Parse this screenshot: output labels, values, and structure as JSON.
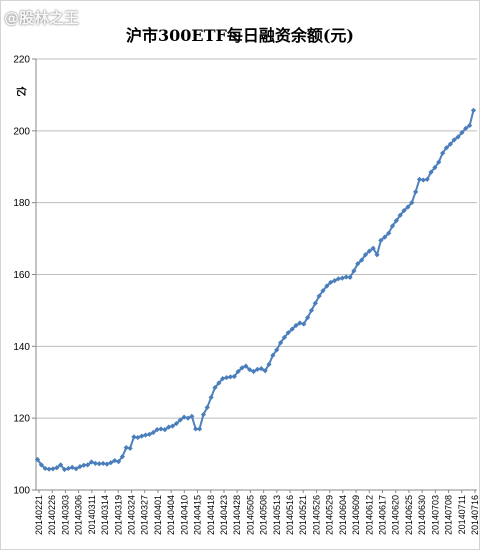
{
  "watermark": "@股林之王",
  "chart_data": {
    "type": "line",
    "title": "沪市300ETF每日融资余额(元)",
    "unit_label": "亿",
    "xlabel": "",
    "ylabel": "",
    "ylim": [
      100,
      220
    ],
    "yticks": [
      100,
      120,
      140,
      160,
      180,
      200,
      220
    ],
    "grid": "horizontal",
    "line_color": "#4f81bd",
    "marker_color": "#4a7ebb",
    "x_tick_labels": [
      "20140221",
      "20140226",
      "20140303",
      "20140306",
      "20140311",
      "20140314",
      "20140319",
      "20140324",
      "20140327",
      "20140401",
      "20140404",
      "20140410",
      "20140415",
      "20140418",
      "20140423",
      "20140428",
      "20140505",
      "20140508",
      "20140513",
      "20140516",
      "20140521",
      "20140526",
      "20140529",
      "20140604",
      "20140609",
      "20140612",
      "20140617",
      "20140620",
      "20140625",
      "20140630",
      "20140703",
      "20140708",
      "20140711",
      "20140716"
    ],
    "series": [
      {
        "values": [
          108.5,
          107,
          106,
          105.8,
          105.9,
          106.2,
          107,
          105.7,
          106,
          106.3,
          105.9,
          106.5,
          106.9,
          107,
          107.8,
          107.4,
          107.3,
          107.4,
          107.2,
          107.6,
          108.2,
          107.9,
          109.3,
          111.8,
          111.6,
          114.8,
          114.6,
          115,
          115.3,
          115.5,
          116,
          116.8,
          117,
          116.8,
          117.5,
          117.8,
          118.5,
          119.5,
          120.3,
          120,
          120.5,
          117,
          117,
          121,
          123,
          125.8,
          128.5,
          129.8,
          131,
          131.3,
          131.5,
          131.6,
          133,
          134,
          134.5,
          133.5,
          133,
          133.6,
          133.8,
          133.2,
          135,
          137.5,
          139,
          141,
          142.5,
          143.8,
          144.8,
          145.8,
          146.5,
          146.2,
          148,
          150,
          152,
          154,
          155.5,
          156.8,
          157.8,
          158.3,
          158.8,
          159,
          159.3,
          159.2,
          161,
          163,
          164,
          165.5,
          166.5,
          167.3,
          165.5,
          169.5,
          170.4,
          171.5,
          173.5,
          175,
          176.5,
          177.8,
          178.8,
          180,
          183,
          186.5,
          186.3,
          186.5,
          188.5,
          189.8,
          191.3,
          193.8,
          195.3,
          196.3,
          197.5,
          198.3,
          199.5,
          200.7,
          201.5,
          205.7
        ]
      }
    ]
  }
}
